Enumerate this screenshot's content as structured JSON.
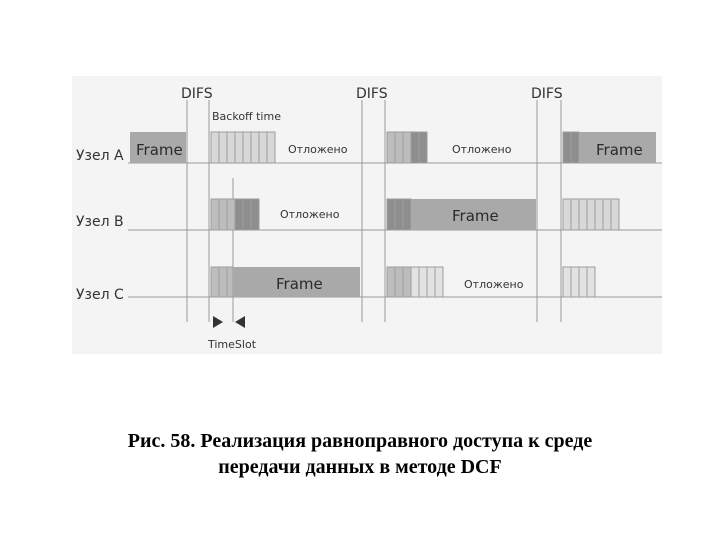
{
  "difs_label": "DIFS",
  "backoff_label": "Backoff time",
  "timeslot_label": "TimeSlot",
  "nodes": [
    {
      "label": "Узел A"
    },
    {
      "label": "Узел B"
    },
    {
      "label": "Узел C"
    }
  ],
  "frame_label": "Frame",
  "deferred_label": "Отложено",
  "caption": {
    "line1": "Рис. 58. Реализация равноправного доступа к среде",
    "line2": "передачи данных в методе DCF"
  },
  "colors": {
    "panel": "#f4f4f4",
    "frame": "#a9a9a9",
    "slot_light": "#d8d8d8",
    "slot_mid": "#bdbdbd",
    "slot_dark": "#8e8e8e",
    "line": "#9a9a9a"
  }
}
